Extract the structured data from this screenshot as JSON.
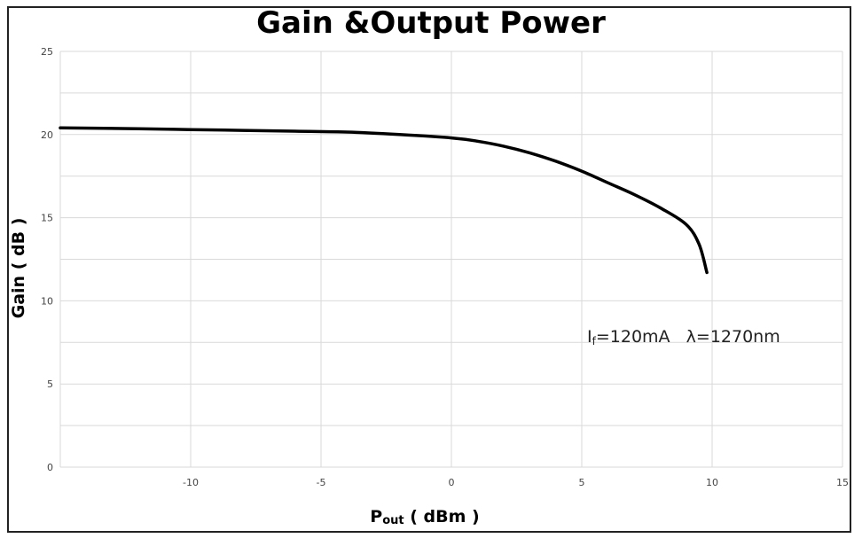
{
  "chart_data": {
    "type": "line",
    "title": "Gain &Output Power",
    "xlabel": {
      "main": "P",
      "sub": "out",
      "rest": " ( dBm )"
    },
    "ylabel": "Gain ( dB )",
    "xlim": [
      -15,
      15
    ],
    "ylim": [
      0,
      25
    ],
    "x_ticks": [
      -10,
      -5,
      0,
      5,
      10,
      15
    ],
    "y_ticks": [
      0,
      5,
      10,
      15,
      20,
      25
    ],
    "grid": true,
    "annotation": {
      "text_a": "I",
      "text_a_sub": "f",
      "text_b": "=120mA   λ=1270nm"
    },
    "series": [
      {
        "color": "#000000",
        "x": [
          -15,
          -12,
          -10,
          -8,
          -6,
          -4,
          -2,
          0,
          1,
          2,
          3,
          4,
          5,
          6,
          7,
          8,
          9,
          9.5,
          9.8
        ],
        "y": [
          20.4,
          20.35,
          20.3,
          20.25,
          20.2,
          20.15,
          20.0,
          19.8,
          19.6,
          19.3,
          18.9,
          18.4,
          17.8,
          17.1,
          16.4,
          15.6,
          14.6,
          13.4,
          11.7
        ]
      }
    ]
  }
}
